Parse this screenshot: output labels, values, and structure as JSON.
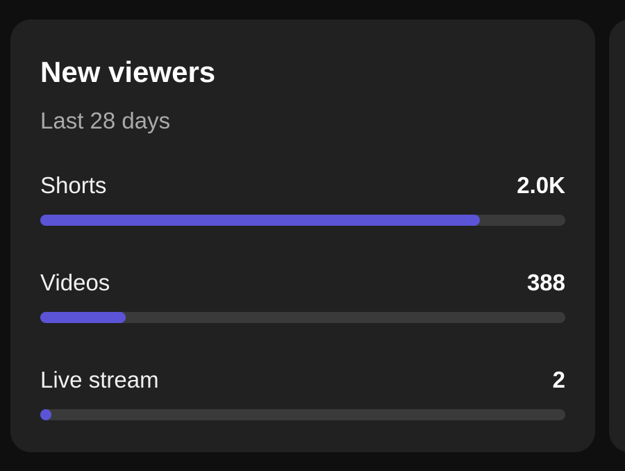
{
  "card": {
    "title": "New viewers",
    "subtitle": "Last 28 days",
    "items": [
      {
        "label": "Shorts",
        "value": 2000,
        "value_label": "2.0K"
      },
      {
        "label": "Videos",
        "value": 388
      },
      {
        "label": "Live stream",
        "value": 2
      }
    ]
  }
}
